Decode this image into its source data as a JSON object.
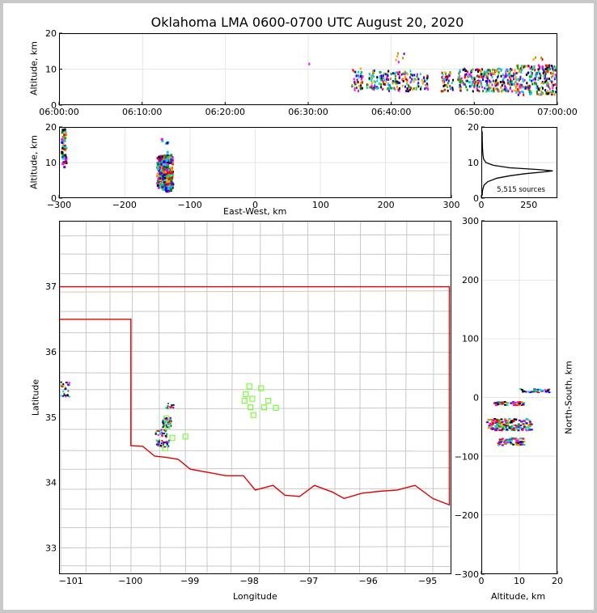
{
  "chart_data": [
    {
      "id": "time_height",
      "type": "scatter",
      "title": "Oklahoma LMA 0600-0700 UTC August 20, 2020",
      "xlabel": "",
      "ylabel": "Altitude, km",
      "xlim": [
        0,
        60
      ],
      "ylim": [
        0,
        20
      ],
      "xticks": [
        0,
        10,
        20,
        30,
        40,
        50,
        60
      ],
      "xticklabels": [
        "06:00:00",
        "06:10:00",
        "06:20:00",
        "06:30:00",
        "06:40:00",
        "06:50:00",
        "07:00:00"
      ],
      "yticks": [
        0,
        10,
        20
      ],
      "grid": true,
      "point_clusters": [
        {
          "x_range": [
            29.9,
            30.1
          ],
          "y_range": [
            11.5,
            12.5
          ],
          "n": 1
        },
        {
          "x_range": [
            35.2,
            36.5
          ],
          "y_range": [
            3.5,
            10.5
          ],
          "n": 40
        },
        {
          "x_range": [
            37.0,
            39.5
          ],
          "y_range": [
            4.5,
            10
          ],
          "n": 70
        },
        {
          "x_range": [
            39.5,
            42.5
          ],
          "y_range": [
            4,
            10
          ],
          "n": 80
        },
        {
          "x_range": [
            40.5,
            41.5
          ],
          "y_range": [
            12,
            15
          ],
          "n": 6
        },
        {
          "x_range": [
            42.5,
            44.5
          ],
          "y_range": [
            4.5,
            9
          ],
          "n": 40
        },
        {
          "x_range": [
            46,
            47.5
          ],
          "y_range": [
            4,
            10
          ],
          "n": 40
        },
        {
          "x_range": [
            48,
            51
          ],
          "y_range": [
            4,
            10.5
          ],
          "n": 110
        },
        {
          "x_range": [
            51,
            55
          ],
          "y_range": [
            4,
            10.5
          ],
          "n": 170
        },
        {
          "x_range": [
            55,
            60
          ],
          "y_range": [
            3,
            11.5
          ],
          "n": 230
        },
        {
          "x_range": [
            57,
            58.5
          ],
          "y_range": [
            12,
            14
          ],
          "n": 4
        }
      ]
    },
    {
      "id": "ew_altitude",
      "type": "scatter",
      "xlabel": "East-West, km",
      "ylabel": "Altitude, km",
      "xlim": [
        -300,
        300
      ],
      "ylim": [
        0,
        20
      ],
      "xticks": [
        -300,
        -200,
        -100,
        0,
        100,
        200,
        300
      ],
      "yticks": [
        0,
        10,
        20
      ],
      "grid": true,
      "point_clusters": [
        {
          "x_range": [
            -299,
            -292
          ],
          "y_range": [
            9,
            20
          ],
          "n": 45
        },
        {
          "x_range": [
            -152,
            -128
          ],
          "y_range": [
            2,
            12.5
          ],
          "n": 260
        },
        {
          "x_range": [
            -145,
            -135
          ],
          "y_range": [
            13,
            19
          ],
          "n": 6
        }
      ]
    },
    {
      "id": "altitude_histogram",
      "type": "line",
      "xlim": [
        0,
        400
      ],
      "ylim": [
        0,
        20
      ],
      "xticks": [
        0,
        250
      ],
      "yticks": [
        0,
        10,
        20
      ],
      "annotation": "5,515 sources",
      "grid": true,
      "x": [
        0,
        2,
        10,
        30,
        80,
        150,
        230,
        330,
        380,
        300,
        150,
        60,
        20,
        8,
        4,
        2,
        1,
        0
      ],
      "y": [
        0.5,
        2,
        3.5,
        4.5,
        5.5,
        6.2,
        6.8,
        7.3,
        7.6,
        8.0,
        8.5,
        9.2,
        10,
        11,
        12.5,
        14,
        16,
        19
      ]
    },
    {
      "id": "map",
      "type": "scatter",
      "xlabel": "Longitude",
      "ylabel": "Latitude",
      "xlim": [
        -101.2,
        -94.6
      ],
      "ylim": [
        32.6,
        38
      ],
      "xticks": [
        -101,
        -100,
        -99,
        -98,
        -97,
        -96,
        -95
      ],
      "yticks": [
        33,
        34,
        35,
        36,
        37
      ],
      "stations": [
        {
          "lon": -98.0,
          "lat": 35.47
        },
        {
          "lon": -97.8,
          "lat": 35.44
        },
        {
          "lon": -98.06,
          "lat": 35.35
        },
        {
          "lon": -97.95,
          "lat": 35.28
        },
        {
          "lon": -98.08,
          "lat": 35.25
        },
        {
          "lon": -97.68,
          "lat": 35.25
        },
        {
          "lon": -97.98,
          "lat": 35.15
        },
        {
          "lon": -97.75,
          "lat": 35.15
        },
        {
          "lon": -97.55,
          "lat": 35.14
        },
        {
          "lon": -97.93,
          "lat": 35.03
        },
        {
          "lon": -99.4,
          "lat": 34.98
        },
        {
          "lon": -99.38,
          "lat": 34.86
        },
        {
          "lon": -99.3,
          "lat": 34.68
        },
        {
          "lon": -99.08,
          "lat": 34.7
        },
        {
          "lon": -99.42,
          "lat": 34.52
        }
      ],
      "point_clusters": [
        {
          "x_range": [
            -101.2,
            -101.05
          ],
          "y_range": [
            35.3,
            35.55
          ],
          "n": 30
        },
        {
          "x_range": [
            -99.48,
            -99.33
          ],
          "y_range": [
            34.85,
            35.0
          ],
          "n": 60
        },
        {
          "x_range": [
            -99.6,
            -99.4
          ],
          "y_range": [
            34.7,
            34.82
          ],
          "n": 30
        },
        {
          "x_range": [
            -99.58,
            -99.36
          ],
          "y_range": [
            34.55,
            34.66
          ],
          "n": 40
        },
        {
          "x_range": [
            -99.42,
            -99.28
          ],
          "y_range": [
            35.14,
            35.22
          ],
          "n": 12
        }
      ]
    },
    {
      "id": "altitude_ns",
      "type": "scatter",
      "xlabel": "Altitude, km",
      "ylabel": "North-South, km",
      "xlim": [
        0,
        20
      ],
      "ylim": [
        -300,
        300
      ],
      "xticks": [
        0,
        10,
        20
      ],
      "yticks": [
        -300,
        -200,
        -100,
        0,
        100,
        200,
        300
      ],
      "grid": true,
      "point_clusters": [
        {
          "x_range": [
            3,
            11
          ],
          "y_range": [
            -12,
            -6
          ],
          "n": 60
        },
        {
          "x_range": [
            1,
            13
          ],
          "y_range": [
            -35,
            -55
          ],
          "n": 160
        },
        {
          "x_range": [
            4,
            11
          ],
          "y_range": [
            -68,
            -80
          ],
          "n": 70
        },
        {
          "x_range": [
            10,
            18
          ],
          "y_range": [
            10,
            16
          ],
          "n": 35
        }
      ]
    }
  ]
}
